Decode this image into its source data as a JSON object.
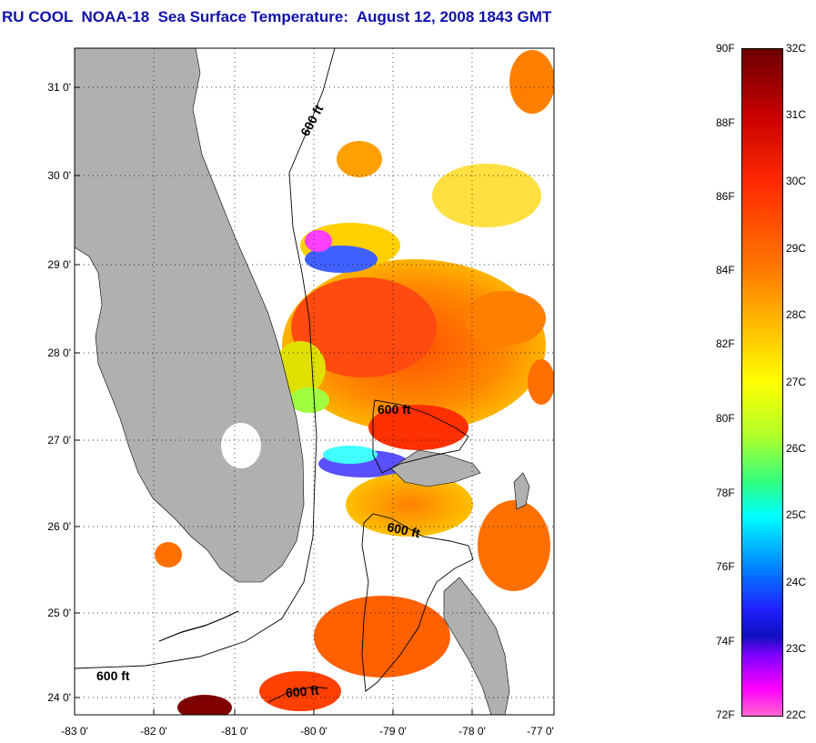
{
  "title": "RU COOL  NOAA-18  Sea Surface Temperature:  August 12, 2008 1843 GMT",
  "map": {
    "lat_labels": [
      "31 0'",
      "30 0'",
      "29 0'",
      "28 0'",
      "27 0'",
      "26 0'",
      "25 0'",
      "24 0'"
    ],
    "lon_labels": [
      "-83 0'",
      "-82 0'",
      "-81 0'",
      "-80 0'",
      "-79 0'",
      "-78 0'",
      "-77 0'"
    ],
    "contour_labels": [
      "600 ft",
      "600 ft",
      "600 ft",
      "600 ft",
      "600 ft"
    ],
    "colors": {
      "land": "#b0b0b0",
      "cloud": "#ffffff",
      "grid": "#000000"
    }
  },
  "colorbar": {
    "fahrenheit_labels": [
      "90F",
      "88F",
      "86F",
      "84F",
      "82F",
      "80F",
      "78F",
      "76F",
      "74F",
      "72F"
    ],
    "celsius_labels": [
      "32C",
      "31C",
      "30C",
      "29C",
      "28C",
      "27C",
      "26C",
      "25C",
      "24C",
      "23C",
      "22C"
    ]
  }
}
